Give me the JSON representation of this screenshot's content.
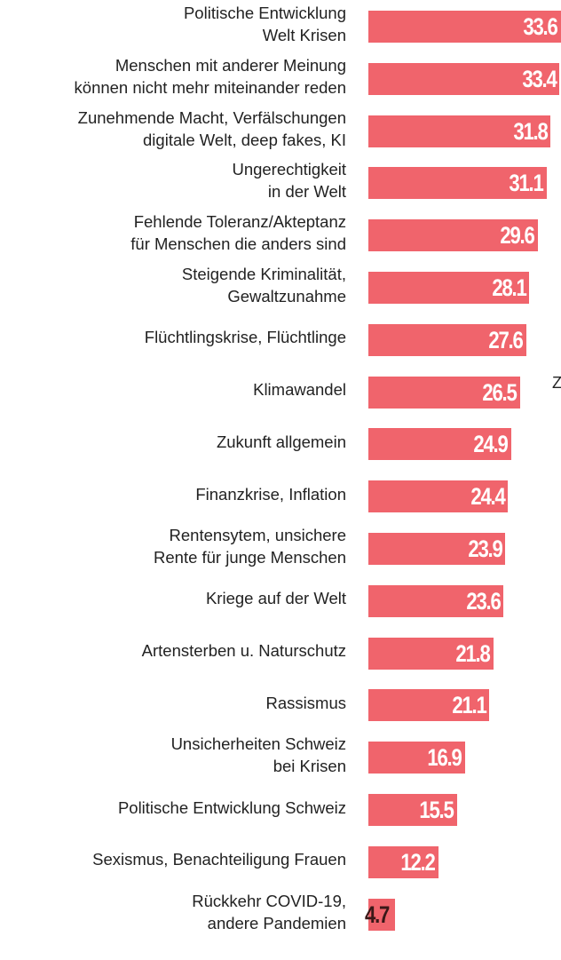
{
  "chart_data": {
    "type": "bar",
    "orientation": "horizontal",
    "categories": [
      "Politische Entwicklung\nWelt Krisen",
      "Menschen mit anderer Meinung\nkönnen nicht mehr miteinander reden",
      "Zunehmende Macht, Verfälschungen\ndigitale Welt, deep fakes, KI",
      "Ungerechtigkeit\nin der Welt",
      "Fehlende Toleranz/Akteptanz\nfür Menschen die anders sind",
      "Steigende Kriminalität,\nGewaltzunahme",
      "Flüchtlingskrise, Flüchtlinge",
      "Klimawandel",
      "Zukunft allgemein",
      "Finanzkrise, Inflation",
      "Rentensytem, unsichere\nRente für junge Menschen",
      "Kriege auf der Welt",
      "Artensterben u. Naturschutz",
      "Rassismus",
      "Unsicherheiten Schweiz\nbei Krisen",
      "Politische Entwicklung Schweiz",
      "Sexismus, Benachteiligung Frauen",
      "Rückkehr COVID-19,\nandere Pandemien"
    ],
    "values": [
      33.6,
      33.4,
      31.8,
      31.1,
      29.6,
      28.1,
      27.6,
      26.5,
      24.9,
      24.4,
      23.9,
      23.6,
      21.8,
      21.1,
      16.9,
      15.5,
      12.2,
      4.7
    ],
    "color": "#f0646c",
    "annotation": "Z"
  }
}
